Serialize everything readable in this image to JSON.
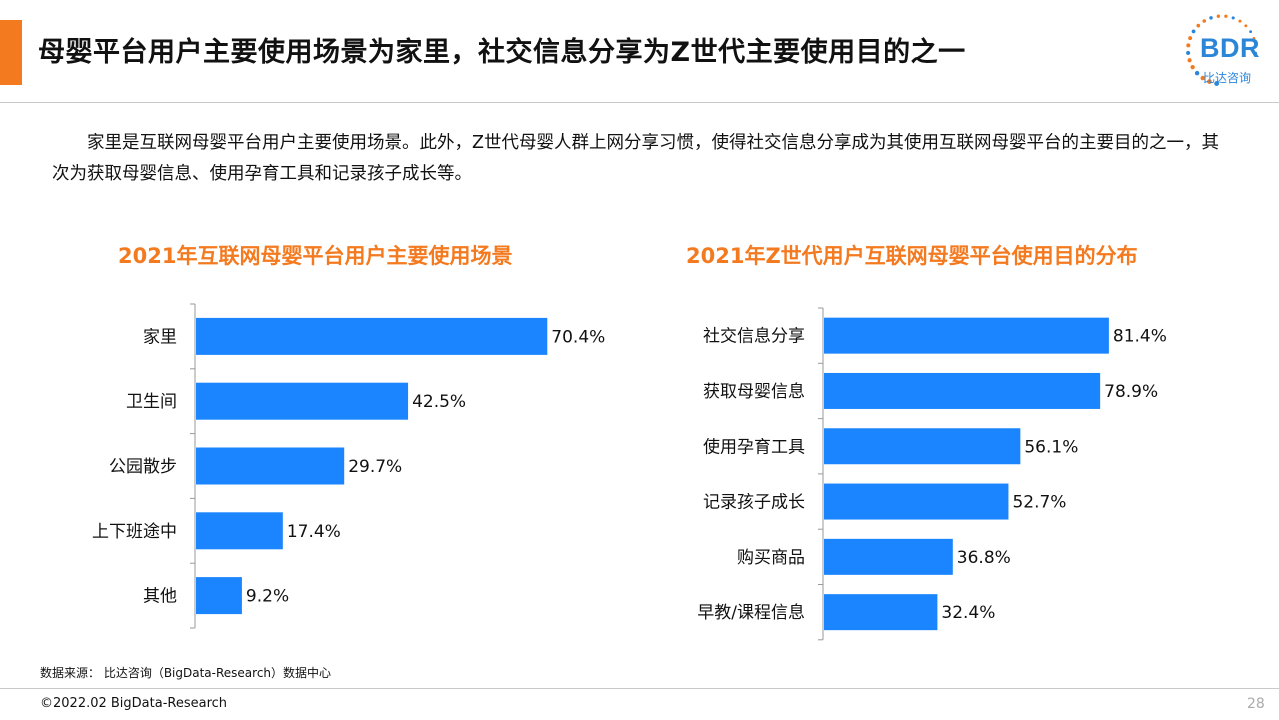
{
  "header": {
    "title": "母婴平台用户主要使用场景为家里，社交信息分享为Z世代主要使用目的之一"
  },
  "logo": {
    "text": "BDR",
    "subtitle": "比达咨询",
    "accent_color": "#f47a20",
    "brand_color": "#2c86d8"
  },
  "intro_text": "家里是互联网母婴平台用户主要使用场景。此外，Z世代母婴人群上网分享习惯，使得社交信息分享成为其使用互联网母婴平台的主要目的之一，其次为获取母婴信息、使用孕育工具和记录孩子成长等。",
  "chart_data": [
    {
      "type": "bar",
      "orientation": "horizontal",
      "title": "2021年互联网母婴平台用户主要使用场景",
      "categories": [
        "家里",
        "卫生间",
        "公园散步",
        "上下班途中",
        "其他"
      ],
      "values": [
        70.4,
        42.5,
        29.7,
        17.4,
        9.2
      ],
      "data_labels": [
        "70.4%",
        "42.5%",
        "29.7%",
        "17.4%",
        "9.2%"
      ],
      "bar_color": "#1a85ff",
      "grid": false,
      "legend": "none"
    },
    {
      "type": "bar",
      "orientation": "horizontal",
      "title": "2021年Z世代用户互联网母婴平台使用目的分布",
      "categories": [
        "社交信息分享",
        "获取母婴信息",
        "使用孕育工具",
        "记录孩子成长",
        "购买商品",
        "早教/课程信息"
      ],
      "values": [
        81.4,
        78.9,
        56.1,
        52.7,
        36.8,
        32.4
      ],
      "data_labels": [
        "81.4%",
        "78.9%",
        "56.1%",
        "52.7%",
        "36.8%",
        "32.4%"
      ],
      "bar_color": "#1a85ff",
      "grid": false,
      "legend": "none"
    }
  ],
  "footer": {
    "source": "数据来源： 比达咨询（BigData-Research）数据中心",
    "copyright": "©2022.02 BigData-Research",
    "page_number": "28"
  }
}
